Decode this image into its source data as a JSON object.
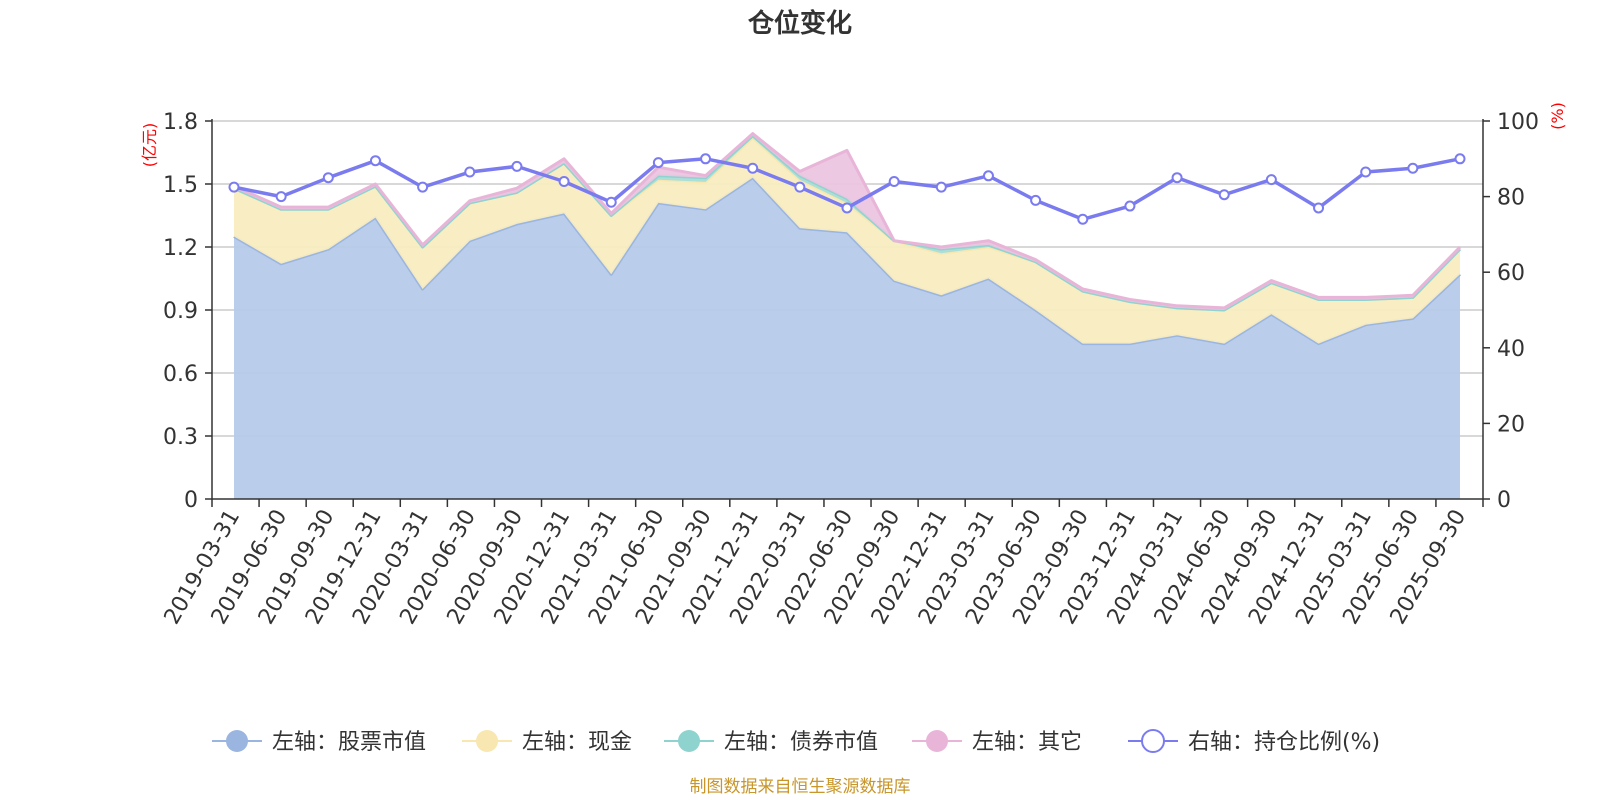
{
  "chart_data": {
    "type": "area",
    "title": "仓位变化",
    "left_axis": {
      "unit": "(亿元)",
      "ticks": [
        "0",
        "0.3",
        "0.6",
        "0.9",
        "1.2",
        "1.5",
        "1.8"
      ],
      "min": 0,
      "max": 1.8
    },
    "right_axis": {
      "unit": "(%)",
      "ticks": [
        "0",
        "20",
        "40",
        "60",
        "80",
        "100"
      ],
      "min": 0,
      "max": 100
    },
    "categories": [
      "2019-03-31",
      "2019-06-30",
      "2019-09-30",
      "2019-12-31",
      "2020-03-31",
      "2020-06-30",
      "2020-09-30",
      "2020-12-31",
      "2021-03-31",
      "2021-06-30",
      "2021-09-30",
      "2021-12-31",
      "2022-03-31",
      "2022-06-30",
      "2022-09-30",
      "2022-12-31",
      "2023-03-31",
      "2023-06-30",
      "2023-09-30",
      "2023-12-31",
      "2024-03-31",
      "2024-06-30",
      "2024-09-30",
      "2024-12-31",
      "2025-03-31",
      "2025-06-30",
      "2025-09-30"
    ],
    "series": [
      {
        "name": "左轴：股票市值",
        "axis": "left",
        "color": "#9ab5e0",
        "fill": "#b6cae9",
        "values": [
          1.25,
          1.12,
          1.19,
          1.34,
          1.0,
          1.23,
          1.31,
          1.36,
          1.07,
          1.41,
          1.38,
          1.53,
          1.29,
          1.27,
          1.04,
          0.97,
          1.05,
          0.9,
          0.74,
          0.74,
          0.78,
          0.74,
          0.88,
          0.74,
          0.83,
          0.86,
          1.07
        ]
      },
      {
        "name": "左轴：现金",
        "axis": "left",
        "color": "#f8e7b0",
        "fill": "#f8ecc0",
        "values": [
          0.23,
          0.26,
          0.19,
          0.15,
          0.2,
          0.18,
          0.15,
          0.24,
          0.28,
          0.11,
          0.13,
          0.19,
          0.23,
          0.14,
          0.19,
          0.2,
          0.15,
          0.23,
          0.25,
          0.2,
          0.13,
          0.16,
          0.15,
          0.21,
          0.12,
          0.1,
          0.12
        ]
      },
      {
        "name": "左轴：债券市值",
        "axis": "left",
        "color": "#8fd3cf",
        "fill": "#a9ddd8",
        "values": [
          0,
          0,
          0,
          0,
          0,
          0,
          0,
          0,
          0,
          0.02,
          0.02,
          0.01,
          0.02,
          0.02,
          0,
          0.02,
          0.01,
          0,
          0,
          0,
          0,
          0,
          0,
          0,
          0,
          0,
          0
        ]
      },
      {
        "name": "左轴：其它",
        "axis": "left",
        "color": "#e8b5d8",
        "fill": "#ebc5e0",
        "values": [
          0.01,
          0.01,
          0.01,
          0.01,
          0.01,
          0.01,
          0.02,
          0.02,
          0.01,
          0.04,
          0.01,
          0.01,
          0.02,
          0.23,
          0,
          0.01,
          0.02,
          0.01,
          0.01,
          0.01,
          0.01,
          0.01,
          0.01,
          0.01,
          0.01,
          0.01,
          0.01
        ]
      },
      {
        "name": "右轴：持仓比例(%)",
        "axis": "right",
        "color": "#7b7bf0",
        "values": [
          82.5,
          80.0,
          85.0,
          89.5,
          82.5,
          86.5,
          88.0,
          84.0,
          78.5,
          89.0,
          90.0,
          87.5,
          82.5,
          77.0,
          84.0,
          82.5,
          85.5,
          79.0,
          74.0,
          77.5,
          85.0,
          80.5,
          84.5,
          77.0,
          86.5,
          87.5,
          90.0
        ]
      }
    ],
    "legend_position": "bottom",
    "source": "制图数据来自恒生聚源数据库"
  }
}
